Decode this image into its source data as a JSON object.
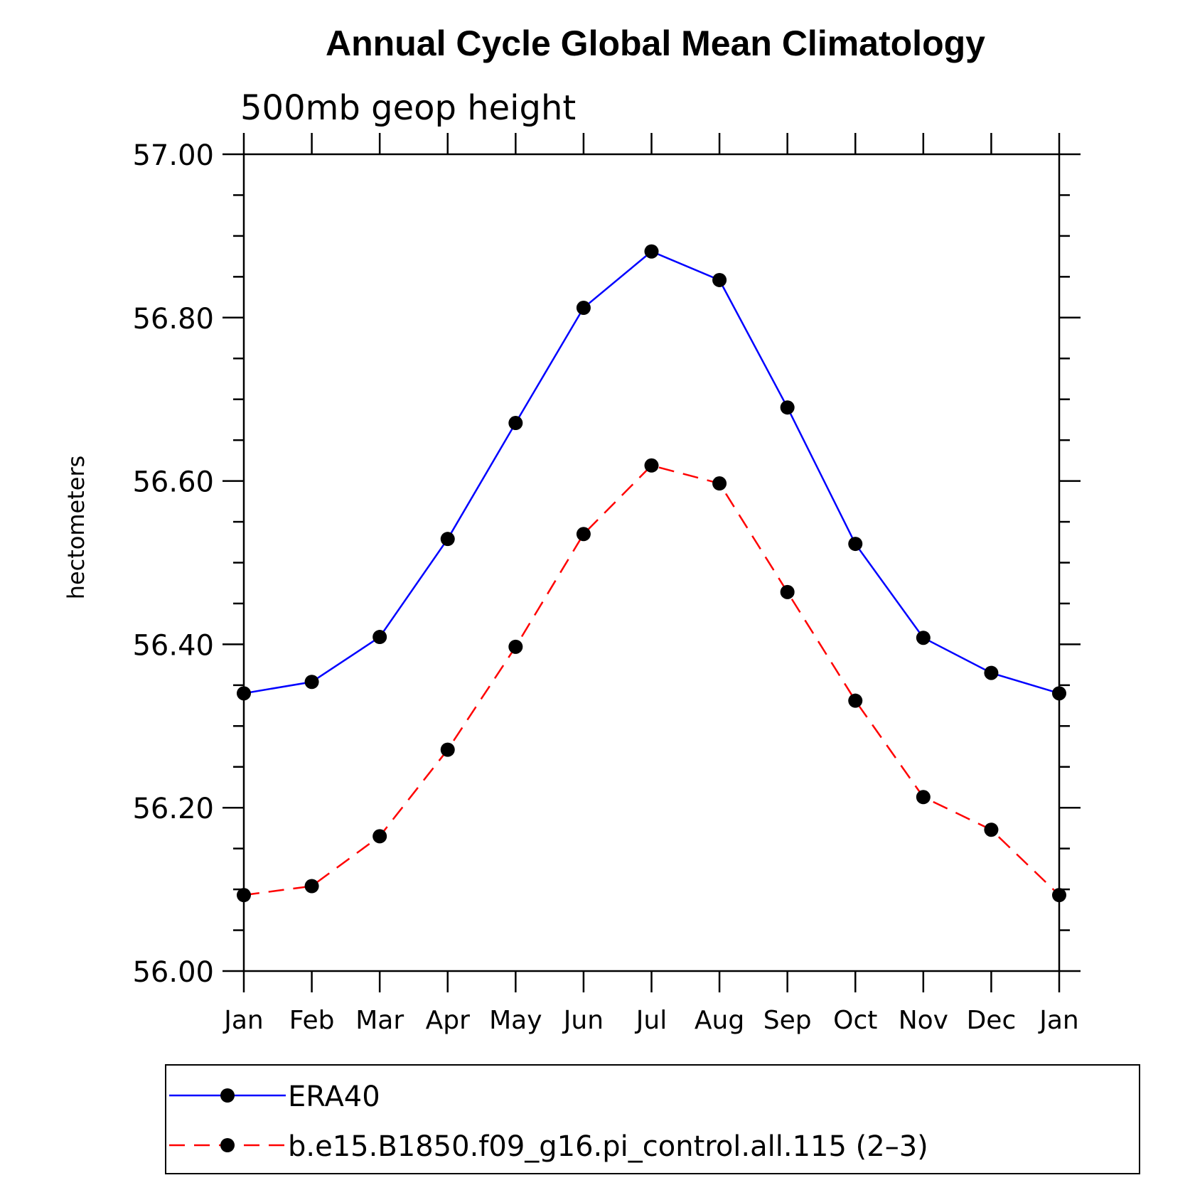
{
  "chart_data": {
    "type": "line",
    "title": "Annual Cycle Global Mean Climatology",
    "subtitle": "500mb geop height",
    "xlabel": "",
    "ylabel": "hectometers",
    "categories": [
      "Jan",
      "Feb",
      "Mar",
      "Apr",
      "May",
      "Jun",
      "Jul",
      "Aug",
      "Sep",
      "Oct",
      "Nov",
      "Dec",
      "Jan"
    ],
    "ylim": [
      56.0,
      57.0
    ],
    "yticks": [
      "56.00",
      "56.20",
      "56.40",
      "56.60",
      "56.80",
      "57.00"
    ],
    "yminor_step": 0.05,
    "grid": false,
    "legend_position": "bottom",
    "series": [
      {
        "name": "ERA40",
        "color": "#0000ff",
        "dashed": false,
        "values": [
          56.34,
          56.354,
          56.409,
          56.529,
          56.671,
          56.812,
          56.881,
          56.846,
          56.69,
          56.523,
          56.408,
          56.365,
          56.34
        ]
      },
      {
        "name": "b.e15.B1850.f09_g16.pi_control.all.115 (2–3)",
        "color": "#ff0000",
        "dashed": true,
        "values": [
          56.093,
          56.104,
          56.165,
          56.271,
          56.397,
          56.535,
          56.619,
          56.597,
          56.464,
          56.331,
          56.213,
          56.173,
          56.093
        ]
      }
    ]
  }
}
